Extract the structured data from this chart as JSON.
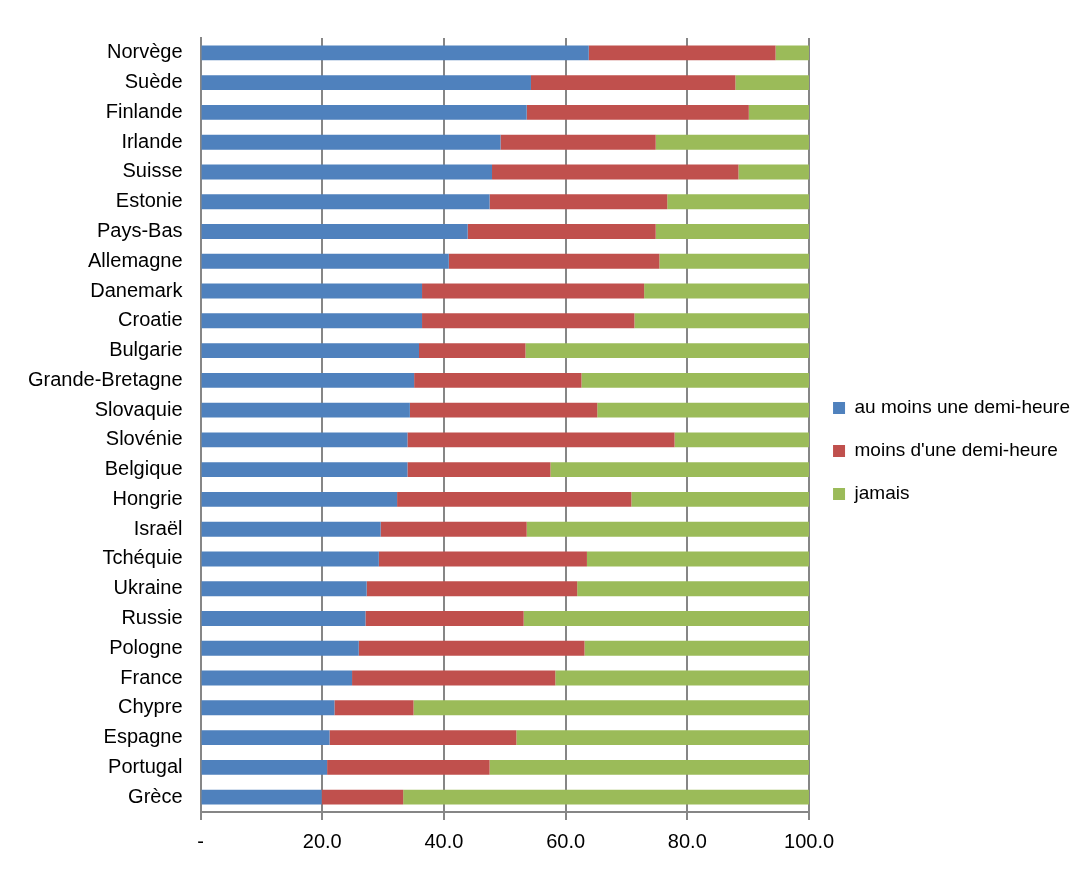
{
  "chart_data": {
    "type": "bar",
    "orientation": "horizontal",
    "stacked": true,
    "categories": [
      "Norvège",
      "Suède",
      "Finlande",
      "Irlande",
      "Suisse",
      "Estonie",
      "Pays-Bas",
      "Allemagne",
      "Danemark",
      "Croatie",
      "Bulgarie",
      "Grande-Bretagne",
      "Slovaquie",
      "Slovénie",
      "Belgique",
      "Hongrie",
      "Israël",
      "Tchéquie",
      "Ukraine",
      "Russie",
      "Pologne",
      "France",
      "Chypre",
      "Espagne",
      "Portugal",
      "Grèce"
    ],
    "series": [
      {
        "name": "au moins une demi-heure",
        "color": "#4f81bd",
        "values": [
          63.8,
          54.3,
          53.6,
          49.3,
          47.9,
          47.5,
          43.9,
          40.8,
          36.4,
          36.4,
          35.9,
          35.1,
          34.4,
          34.0,
          34.0,
          32.3,
          29.6,
          29.3,
          27.3,
          27.1,
          26.0,
          24.9,
          22.0,
          21.2,
          20.8,
          19.9
        ]
      },
      {
        "name": "moins d'une demi-heure",
        "color": "#c0504d",
        "values": [
          30.7,
          33.6,
          36.5,
          25.5,
          40.5,
          29.2,
          30.9,
          34.6,
          36.5,
          34.9,
          17.5,
          27.5,
          30.8,
          43.9,
          23.5,
          38.5,
          24.0,
          34.2,
          34.6,
          26.0,
          37.1,
          33.4,
          13.0,
          30.7,
          26.7,
          13.4
        ]
      },
      {
        "name": "jamais",
        "color": "#9bbb59",
        "values": [
          5.5,
          12.1,
          9.9,
          25.2,
          11.6,
          23.3,
          25.2,
          24.6,
          27.1,
          28.7,
          46.6,
          37.4,
          34.8,
          22.1,
          42.5,
          29.2,
          46.4,
          36.5,
          38.1,
          46.9,
          36.9,
          41.7,
          65.0,
          48.1,
          52.5,
          66.7
        ]
      }
    ],
    "xlim": [
      0,
      100
    ],
    "xticks": [
      {
        "value": 0,
        "label": "-"
      },
      {
        "value": 20,
        "label": "20.0"
      },
      {
        "value": 40,
        "label": "40.0"
      },
      {
        "value": 60,
        "label": "60.0"
      },
      {
        "value": 80,
        "label": "80.0"
      },
      {
        "value": 100,
        "label": "100.0"
      }
    ],
    "grid": "x",
    "legend": "right"
  }
}
